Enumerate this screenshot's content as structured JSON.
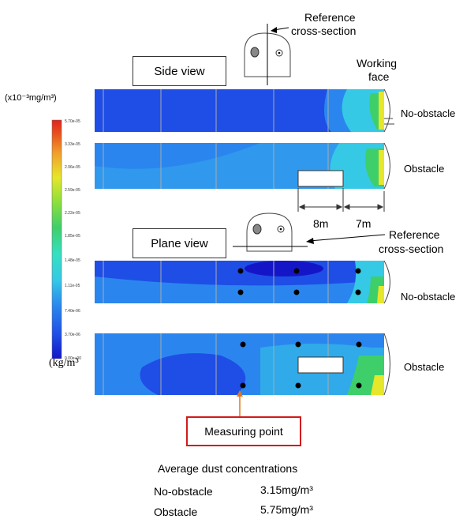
{
  "reference_top": {
    "line1": "Reference",
    "line2": "cross-section"
  },
  "reference_mid": {
    "line1": "Reference",
    "line2": "cross-section"
  },
  "working_face": {
    "line1": "Working",
    "line2": "face"
  },
  "side_view_label": "Side view",
  "plane_view_label": "Plane view",
  "unit_top": "(x10⁻³mg/m³)",
  "unit_bottom": "(kg/m³",
  "legend_ticks": [
    "5.70e-05",
    "3.33e-05",
    "2.96e-05",
    "2.59e-05",
    "2.22e-05",
    "1.85e-05",
    "1.48e-05",
    "1.11e-05",
    "7.40e-06",
    "3.70e-06",
    "0.00e+00"
  ],
  "panel_labels": {
    "side_no": "No-obstacle",
    "side_ob": "Obstacle",
    "plane_no": "No-obstacle",
    "plane_ob": "Obstacle"
  },
  "dims": {
    "d1": "8m",
    "d2": "7m"
  },
  "measuring_point": "Measuring point",
  "avg": {
    "title": "Average dust concentrations",
    "rows": [
      {
        "label": "No-obstacle",
        "value": "3.15mg/m³"
      },
      {
        "label": "Obstacle",
        "value": "5.75mg/m³"
      }
    ]
  },
  "colors": {
    "base": "#1e4ee6",
    "mid": "#2a86ee",
    "cyan": "#35c9e6",
    "green": "#3ecf6a",
    "red": "#e0221e"
  }
}
